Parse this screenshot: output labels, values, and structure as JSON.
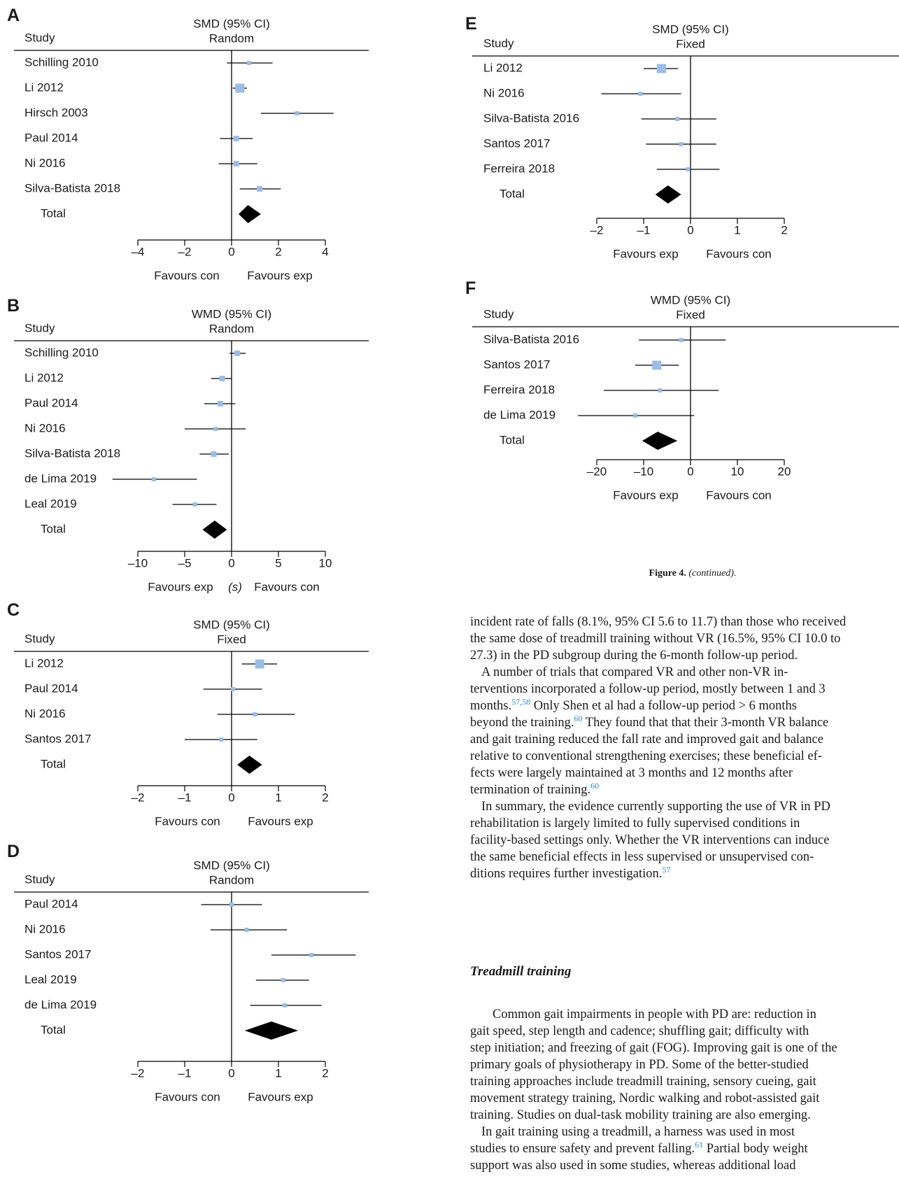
{
  "chart_data": [
    {
      "panel": "A",
      "type": "forest",
      "effect_label": "SMD (95% CI)",
      "model": "Random",
      "study_header": "Study",
      "xlim": [
        -4,
        4
      ],
      "ticks": [
        -4,
        -2,
        0,
        2,
        4
      ],
      "tick_labels": [
        "–4",
        "–2",
        "0",
        "2",
        "4"
      ],
      "favours_left": "Favours con",
      "favours_right": "Favours exp",
      "axis_note": "",
      "studies": [
        {
          "name": "Schilling 2010",
          "est": 0.75,
          "lo": -0.2,
          "hi": 1.75,
          "w": 1
        },
        {
          "name": "Li 2012",
          "est": 0.35,
          "lo": 0.05,
          "hi": 0.65,
          "w": 3
        },
        {
          "name": "Hirsch 2003",
          "est": 2.8,
          "lo": 1.25,
          "hi": 4.35,
          "w": 1
        },
        {
          "name": "Paul 2014",
          "est": 0.2,
          "lo": -0.5,
          "hi": 0.9,
          "w": 2
        },
        {
          "name": "Ni 2016",
          "est": 0.2,
          "lo": -0.55,
          "hi": 1.1,
          "w": 2
        },
        {
          "name": "Silva-Batista 2018",
          "est": 1.2,
          "lo": 0.35,
          "hi": 2.1,
          "w": 2
        }
      ],
      "total": {
        "name": "Total",
        "est": 0.7,
        "lo": 0.3,
        "hi": 1.25
      }
    },
    {
      "panel": "B",
      "type": "forest",
      "effect_label": "WMD (95% CI)",
      "model": "Random",
      "study_header": "Study",
      "xlim": [
        -10,
        10
      ],
      "ticks": [
        -10,
        -5,
        0,
        5,
        10
      ],
      "tick_labels": [
        "–10",
        "–5",
        "0",
        "5",
        "10"
      ],
      "favours_left": "Favours exp",
      "favours_right": "Favours con",
      "axis_note": "(s)",
      "studies": [
        {
          "name": "Schilling 2010",
          "est": 0.6,
          "lo": -0.2,
          "hi": 1.5,
          "w": 2
        },
        {
          "name": "Li 2012",
          "est": -1.0,
          "lo": -2.2,
          "hi": 0.0,
          "w": 2
        },
        {
          "name": "Paul 2014",
          "est": -1.2,
          "lo": -2.9,
          "hi": 0.4,
          "w": 2
        },
        {
          "name": "Ni 2016",
          "est": -1.7,
          "lo": -5.0,
          "hi": 1.5,
          "w": 1
        },
        {
          "name": "Silva-Batista 2018",
          "est": -1.9,
          "lo": -3.4,
          "hi": -0.3,
          "w": 2
        },
        {
          "name": "de Lima 2019",
          "est": -8.3,
          "lo": -12.7,
          "hi": -3.7,
          "w": 1
        },
        {
          "name": "Leal 2019",
          "est": -3.9,
          "lo": -6.3,
          "hi": -1.6,
          "w": 1
        }
      ],
      "total": {
        "name": "Total",
        "est": -1.8,
        "lo": -3.1,
        "hi": -0.5
      }
    },
    {
      "panel": "C",
      "type": "forest",
      "effect_label": "SMD (95% CI)",
      "model": "Fixed",
      "study_header": "Study",
      "xlim": [
        -2,
        2
      ],
      "ticks": [
        -2,
        -1,
        0,
        1,
        2
      ],
      "tick_labels": [
        "–2",
        "–1",
        "0",
        "1",
        "2"
      ],
      "favours_left": "Favours con",
      "favours_right": "Favours exp",
      "axis_note": "",
      "studies": [
        {
          "name": "Li 2012",
          "est": 0.6,
          "lo": 0.22,
          "hi": 0.97,
          "w": 3
        },
        {
          "name": "Paul 2014",
          "est": 0.03,
          "lo": -0.6,
          "hi": 0.65,
          "w": 1
        },
        {
          "name": "Ni 2016",
          "est": 0.5,
          "lo": -0.3,
          "hi": 1.35,
          "w": 1
        },
        {
          "name": "Santos 2017",
          "est": -0.22,
          "lo": -1.0,
          "hi": 0.55,
          "w": 1
        }
      ],
      "total": {
        "name": "Total",
        "est": 0.38,
        "lo": 0.12,
        "hi": 0.65
      }
    },
    {
      "panel": "D",
      "type": "forest",
      "effect_label": "SMD (95% CI)",
      "model": "Random",
      "study_header": "Study",
      "xlim": [
        -2,
        2
      ],
      "ticks": [
        -2,
        -1,
        0,
        1,
        2
      ],
      "tick_labels": [
        "–2",
        "–1",
        "0",
        "1",
        "2"
      ],
      "favours_left": "Favours con",
      "favours_right": "Favours exp",
      "axis_note": "",
      "studies": [
        {
          "name": "Paul 2014",
          "est": 0.0,
          "lo": -0.65,
          "hi": 0.65,
          "w": 1
        },
        {
          "name": "Ni 2016",
          "est": 0.32,
          "lo": -0.45,
          "hi": 1.18,
          "w": 1
        },
        {
          "name": "Santos 2017",
          "est": 1.7,
          "lo": 0.85,
          "hi": 2.65,
          "w": 1
        },
        {
          "name": "Leal 2019",
          "est": 1.1,
          "lo": 0.52,
          "hi": 1.65,
          "w": 1
        },
        {
          "name": "de Lima 2019",
          "est": 1.13,
          "lo": 0.4,
          "hi": 1.92,
          "w": 1
        }
      ],
      "total": {
        "name": "Total",
        "est": 0.85,
        "lo": 0.28,
        "hi": 1.42
      }
    },
    {
      "panel": "E",
      "type": "forest",
      "effect_label": "SMD (95% CI)",
      "model": "Fixed",
      "study_header": "Study",
      "xlim": [
        -2,
        2
      ],
      "ticks": [
        -2,
        -1,
        0,
        1,
        2
      ],
      "tick_labels": [
        "–2",
        "–1",
        "0",
        "1",
        "2"
      ],
      "favours_left": "Favours exp",
      "favours_right": "Favours con",
      "axis_note": "",
      "studies": [
        {
          "name": "Li 2012",
          "est": -0.62,
          "lo": -1.0,
          "hi": -0.27,
          "w": 3
        },
        {
          "name": "Ni 2016",
          "est": -1.07,
          "lo": -1.9,
          "hi": -0.2,
          "w": 1
        },
        {
          "name": "Silva-Batista 2016",
          "est": -0.28,
          "lo": -1.05,
          "hi": 0.55,
          "w": 1
        },
        {
          "name": "Santos 2017",
          "est": -0.2,
          "lo": -0.95,
          "hi": 0.55,
          "w": 1
        },
        {
          "name": "Ferreira 2018",
          "est": -0.05,
          "lo": -0.72,
          "hi": 0.62,
          "w": 1
        }
      ],
      "total": {
        "name": "Total",
        "est": -0.48,
        "lo": -0.75,
        "hi": -0.2
      }
    },
    {
      "panel": "F",
      "type": "forest",
      "effect_label": "WMD (95% CI)",
      "model": "Fixed",
      "study_header": "Study",
      "xlim": [
        -20,
        20
      ],
      "ticks": [
        -20,
        -10,
        0,
        10,
        20
      ],
      "tick_labels": [
        "–20",
        "–10",
        "0",
        "10",
        "20"
      ],
      "favours_left": "Favours exp",
      "favours_right": "Favours con",
      "axis_note": "",
      "studies": [
        {
          "name": "Silva-Batista 2016",
          "est": -2.0,
          "lo": -11.0,
          "hi": 7.5,
          "w": 1
        },
        {
          "name": "Santos 2017",
          "est": -7.2,
          "lo": -11.8,
          "hi": -2.5,
          "w": 3
        },
        {
          "name": "Ferreira 2018",
          "est": -6.5,
          "lo": -18.5,
          "hi": 6.0,
          "w": 1
        },
        {
          "name": "de Lima 2019",
          "est": -11.8,
          "lo": -24.0,
          "hi": 0.8,
          "w": 1
        }
      ],
      "total": {
        "name": "Total",
        "est": -7.0,
        "lo": -10.3,
        "hi": -2.8
      }
    }
  ],
  "caption": {
    "label": "Figure 4.",
    "text": "(continued)."
  },
  "body": {
    "para1": [
      "incident rate of falls (8.1%, 95% CI 5.6 to 11.7) than those who received",
      "the same dose of treadmill training without VR (16.5%, 95% CI 10.0 to",
      "27.3) in the PD subgroup during the 6-month follow-up period."
    ],
    "para2_l1": "A number of trials that compared VR and other non-VR in-",
    "para2_l2": "terventions incorporated a follow-up period, mostly between 1 and 3",
    "para2_l3a": "months.",
    "para2_l3cite": "57,58",
    "para2_l3b": " Only Shen et al had a follow-up period > 6 months",
    "para2_l4a": "beyond the training.",
    "para2_l4cite": "60",
    "para2_l4b": " They found that that their 3-month VR balance",
    "para2_l5": "and gait training reduced the fall rate and improved gait and balance",
    "para2_l6": "relative to conventional strengthening exercises; these beneficial ef-",
    "para2_l7": "fects were largely maintained at 3 months and 12 months after",
    "para2_l8a": "termination of training.",
    "para2_l8cite": "60",
    "para3_l1": "In summary, the evidence currently supporting the use of VR in PD",
    "para3_l2": "rehabilitation is largely limited to fully supervised conditions in",
    "para3_l3": "facility-based settings only. Whether the VR interventions can induce",
    "para3_l4": "the same beneficial effects in less supervised or unsupervised con-",
    "para3_l5a": "ditions requires further investigation.",
    "para3_l5cite": "57",
    "heading": "Treadmill training",
    "para4_l1": "Common gait impairments in people with PD are: reduction in",
    "para4_l2": "gait speed, step length and cadence; shuffling gait; difficulty with",
    "para4_l3": "step initiation; and freezing of gait (FOG). Improving gait is one of the",
    "para4_l4": "primary goals of physiotherapy in PD. Some of the better-studied",
    "para4_l5": "training approaches include treadmill training, sensory cueing, gait",
    "para4_l6": "movement strategy training, Nordic walking and robot-assisted gait",
    "para4_l7": "training. Studies on dual-task mobility training are also emerging.",
    "para5_l1": "In gait training using a treadmill, a harness was used in most",
    "para5_l2a": "studies to ensure safety and prevent falling.",
    "para5_l2cite": "61",
    "para5_l2b": " Partial body weight",
    "para5_l3": "support was also used in some studies, whereas additional load"
  },
  "colors": {
    "marker": "#9bbde6",
    "diamond": "#000000",
    "line": "#000000"
  }
}
